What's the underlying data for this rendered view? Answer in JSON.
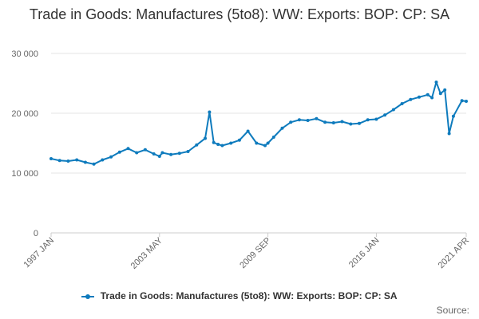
{
  "chart_data": {
    "type": "line",
    "title": "Trade in Goods: Manufactures (5to8): WW: Exports: BOP: CP: SA",
    "xlabel": "",
    "ylabel": "",
    "x_tick_labels": [
      "1997 JAN",
      "2003 MAY",
      "2009 SEP",
      "2016 JAN",
      "2021 APR"
    ],
    "y_tick_labels": [
      "0",
      "10 000",
      "20 000",
      "30 000"
    ],
    "ylim": [
      0,
      30000
    ],
    "grid": "horizontal",
    "legend_position": "bottom",
    "series": [
      {
        "name": "Trade in Goods: Manufactures (5to8): WW: Exports: BOP: CP: SA",
        "color": "#0e7bbd",
        "x": [
          "1997-01",
          "1997-07",
          "1998-01",
          "1998-07",
          "1999-01",
          "1999-07",
          "2000-01",
          "2000-07",
          "2001-01",
          "2001-07",
          "2002-01",
          "2002-07",
          "2003-01",
          "2003-05",
          "2003-07",
          "2004-01",
          "2004-07",
          "2005-01",
          "2005-07",
          "2006-01",
          "2006-04",
          "2006-07",
          "2006-10",
          "2007-01",
          "2007-07",
          "2008-01",
          "2008-07",
          "2009-01",
          "2009-07",
          "2009-09",
          "2010-01",
          "2010-07",
          "2011-01",
          "2011-07",
          "2012-01",
          "2012-07",
          "2013-01",
          "2013-07",
          "2014-01",
          "2014-07",
          "2015-01",
          "2015-07",
          "2016-01",
          "2016-07",
          "2017-01",
          "2017-07",
          "2018-01",
          "2018-07",
          "2019-01",
          "2019-04",
          "2019-07",
          "2019-10",
          "2020-01",
          "2020-04",
          "2020-07",
          "2021-01",
          "2021-04"
        ],
        "values": [
          12400,
          12100,
          12000,
          12200,
          11800,
          11500,
          12200,
          12700,
          13500,
          14100,
          13400,
          13900,
          13200,
          12800,
          13400,
          13100,
          13300,
          13600,
          14700,
          15800,
          20200,
          15100,
          14800,
          14600,
          15000,
          15500,
          17000,
          15000,
          14600,
          15000,
          16000,
          17500,
          18500,
          18900,
          18800,
          19100,
          18500,
          18400,
          18600,
          18200,
          18300,
          18900,
          19000,
          19700,
          20600,
          21600,
          22300,
          22700,
          23100,
          22600,
          25200,
          23300,
          23900,
          16600,
          19500,
          22100,
          22000
        ]
      }
    ]
  },
  "legend": {
    "label": "Trade in Goods: Manufactures (5to8): WW: Exports: BOP: CP: SA"
  },
  "source": {
    "label": "Source:"
  }
}
